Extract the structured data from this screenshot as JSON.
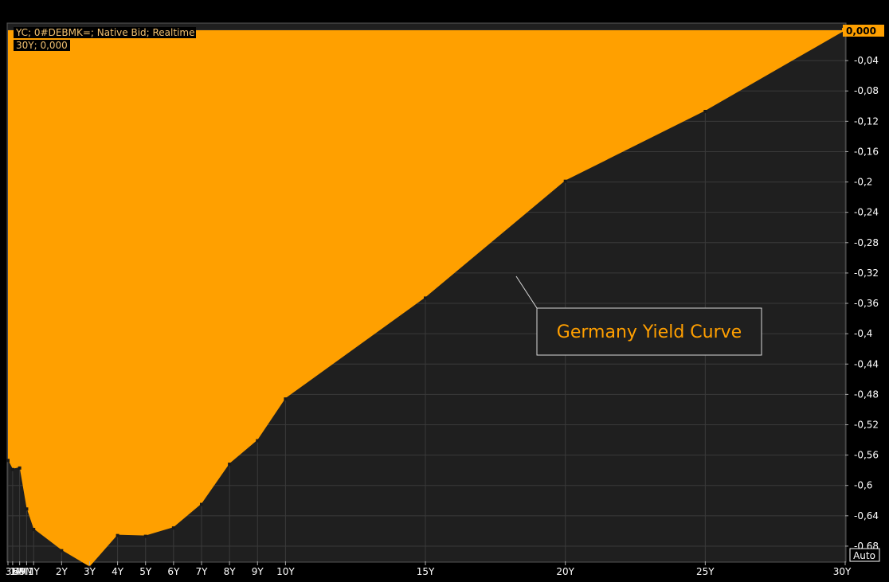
{
  "chart_data": {
    "type": "area",
    "title": "",
    "legend": {
      "line1": "YC; 0#DEBMK=; Native Bid; Realtime",
      "line2": "30Y; 0,000",
      "position": "top-left"
    },
    "annotation": "Germany Yield Curve",
    "last_value_label": "0,000",
    "auto_label": "Auto",
    "x": [
      0.083,
      0.25,
      0.5,
      0.75,
      1,
      2,
      3,
      4,
      5,
      6,
      7,
      8,
      9,
      10,
      15,
      20,
      25,
      30
    ],
    "x_labels": [
      "1M",
      "3M",
      "6M",
      "9M",
      "1Y",
      "2Y",
      "3Y",
      "4Y",
      "5Y",
      "6Y",
      "7Y",
      "8Y",
      "9Y",
      "10Y",
      "15Y",
      "20Y",
      "25Y",
      "30Y"
    ],
    "values": [
      -0.566,
      -0.578,
      -0.576,
      -0.63,
      -0.657,
      -0.685,
      -0.707,
      -0.665,
      -0.666,
      -0.655,
      -0.624,
      -0.571,
      -0.54,
      -0.485,
      -0.352,
      -0.198,
      -0.106,
      0.0
    ],
    "yticks": [
      "0,000",
      "-0,04",
      "-0,08",
      "-0,12",
      "-0,16",
      "-0,2",
      "-0,24",
      "-0,28",
      "-0,32",
      "-0,36",
      "-0,4",
      "-0,44",
      "-0,48",
      "-0,52",
      "-0,56",
      "-0,6",
      "-0,64",
      "-0,68"
    ],
    "ytick_values": [
      0,
      -0.04,
      -0.08,
      -0.12,
      -0.16,
      -0.2,
      -0.24,
      -0.28,
      -0.32,
      -0.36,
      -0.4,
      -0.44,
      -0.48,
      -0.52,
      -0.56,
      -0.6,
      -0.64,
      -0.68
    ],
    "ylim": [
      -0.7,
      0.0
    ],
    "grid": true,
    "colors": {
      "fill": "#ffa000",
      "background": "#1f1f1f",
      "grid": "#3a3a3a",
      "annotation_border": "#d8d8d8"
    }
  }
}
